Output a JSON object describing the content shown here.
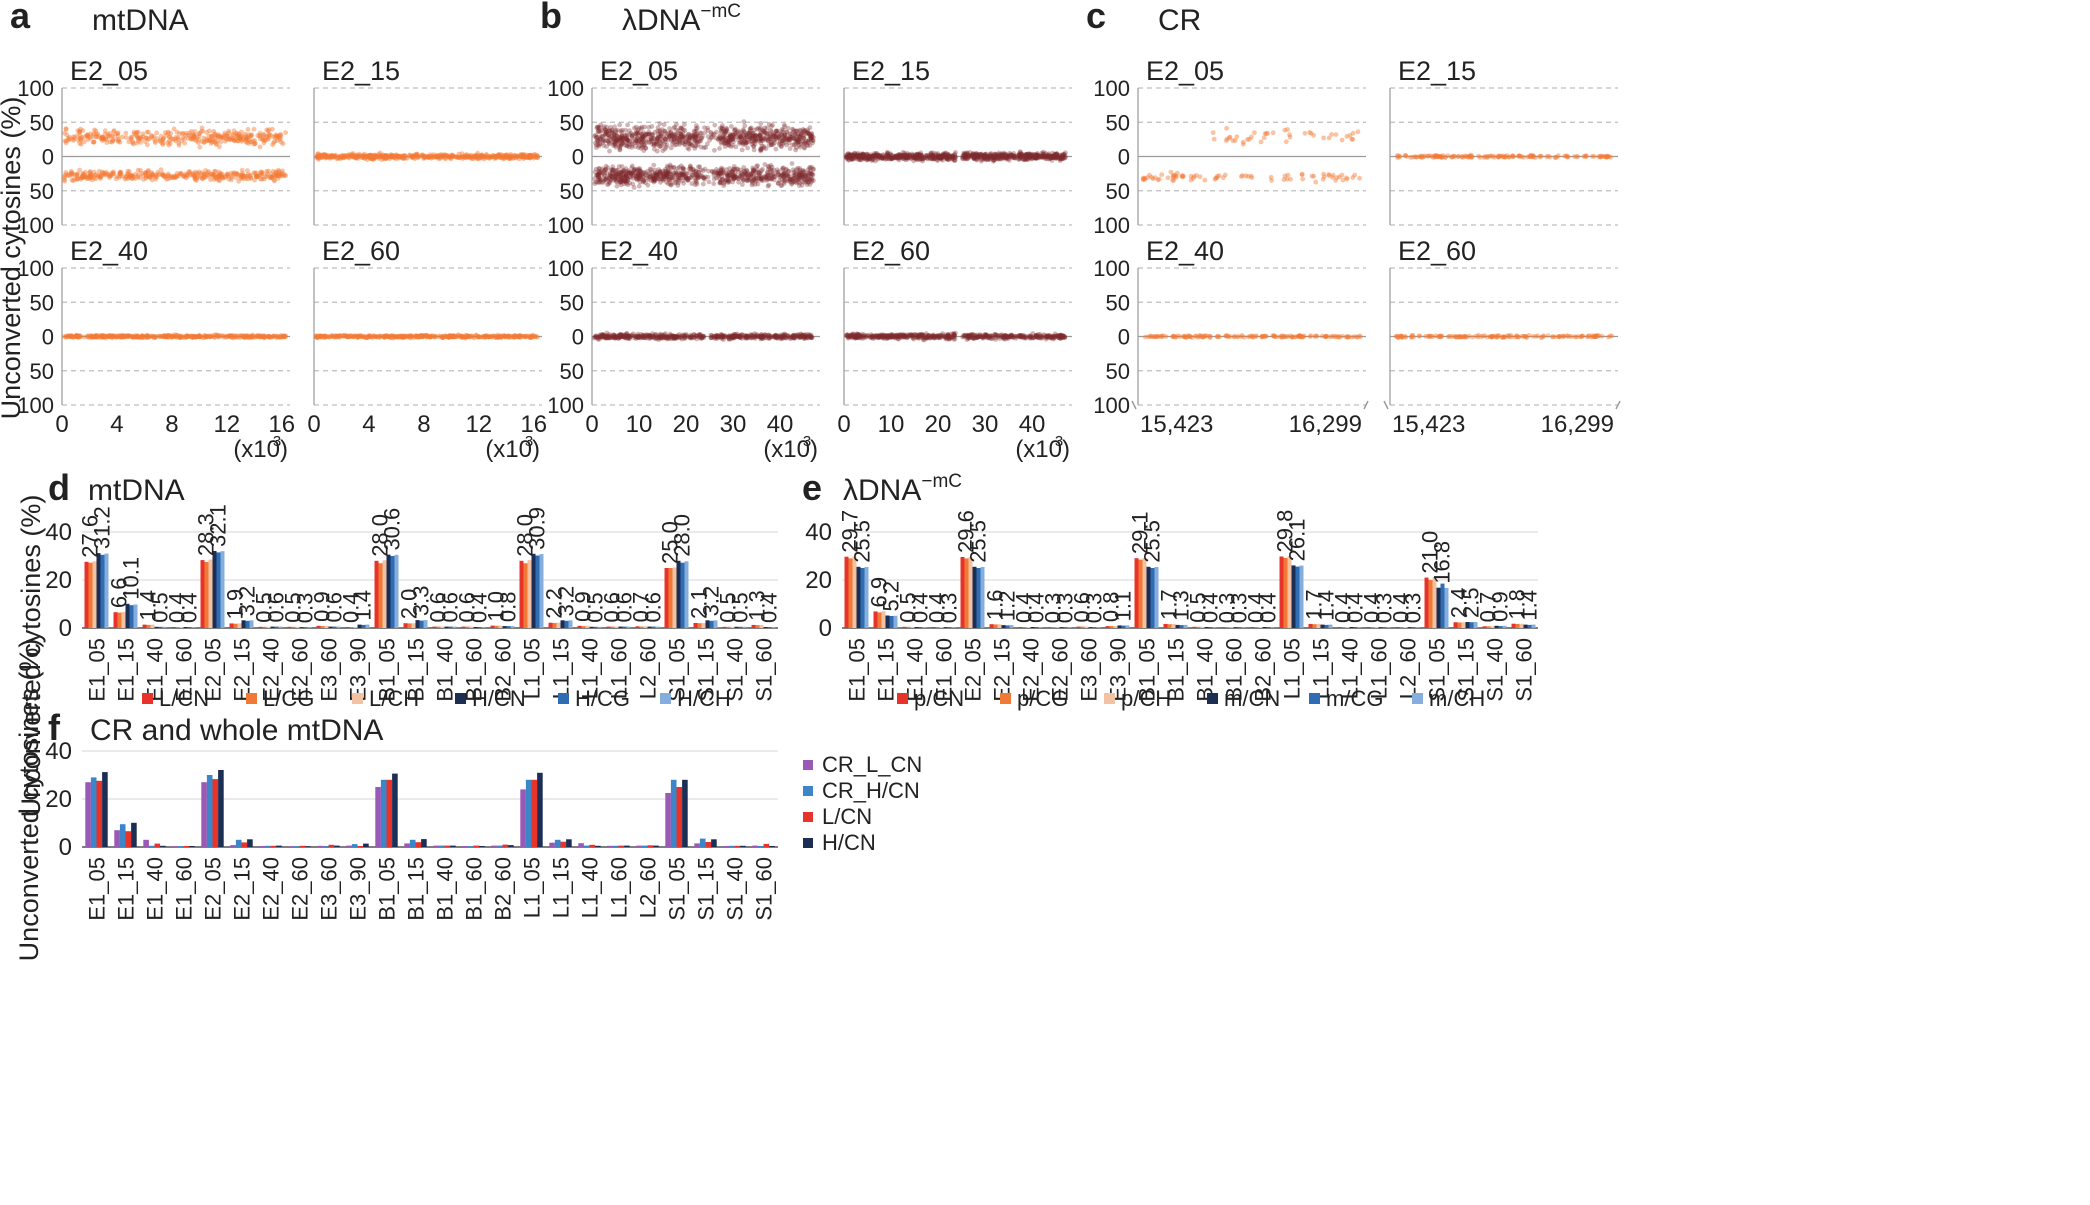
{
  "colors": {
    "mt_dots": "#f47b35",
    "lambda_dots": "#7d2a2e",
    "L_CN": "#e8332a",
    "L_CG": "#f07a35",
    "L_CH": "#f3c2a3",
    "H_CN": "#1d2e54",
    "H_CG": "#2e6db3",
    "H_CH": "#86aedc",
    "CR_L_CN": "#9b59b6",
    "CR_H_CN": "#3a86c8",
    "grid": "#bdbdbd",
    "axis": "#9a9a9a"
  },
  "y_axis_label": "Unconverted cytosines (%)",
  "top": {
    "y_ticks": [
      "100",
      "50",
      "0",
      "50",
      "100"
    ],
    "panels": [
      {
        "letter": "a",
        "title": "mtDNA",
        "kind": "mt",
        "x_ticks": [
          "0",
          "4",
          "8",
          "12",
          "16"
        ],
        "x_unit": "(x10³)",
        "subplots": [
          {
            "label": "E2_05",
            "spread": "wide"
          },
          {
            "label": "E2_15",
            "spread": "low"
          },
          {
            "label": "E2_40",
            "spread": "tiny"
          },
          {
            "label": "E2_60",
            "spread": "tiny"
          }
        ]
      },
      {
        "letter": "b",
        "title": "λDNA",
        "title_sup": "−mC",
        "kind": "lambda",
        "x_ticks": [
          "0",
          "10",
          "20",
          "30",
          "40"
        ],
        "x_unit": "(x10³)",
        "subplots": [
          {
            "label": "E2_05",
            "spread": "wide"
          },
          {
            "label": "E2_15",
            "spread": "low"
          },
          {
            "label": "E2_40",
            "spread": "tiny"
          },
          {
            "label": "E2_60",
            "spread": "tiny"
          }
        ]
      },
      {
        "letter": "c",
        "title": "CR",
        "kind": "cr",
        "x_ticks": [
          "15,423",
          "16,299"
        ],
        "x_unit": "",
        "subplots": [
          {
            "label": "E2_05",
            "spread": "wide"
          },
          {
            "label": "E2_15",
            "spread": "low"
          },
          {
            "label": "E2_40",
            "spread": "tiny"
          },
          {
            "label": "E2_60",
            "spread": "tiny"
          }
        ]
      }
    ]
  },
  "chart_data": [
    {
      "id": "d",
      "type": "bar",
      "letter": "d",
      "title": "mtDNA",
      "ylim": [
        0,
        40
      ],
      "yticks": [
        0,
        20,
        40
      ],
      "ylabel": "Unconverted cytosines (%)",
      "categories": [
        "E1_05",
        "E1_15",
        "E1_40",
        "E1_60",
        "E2_05",
        "E2_15",
        "E2_40",
        "E2_60",
        "E3_60",
        "E3_90",
        "B1_05",
        "B1_15",
        "B1_40",
        "B1_60",
        "B2_60",
        "L1_05",
        "L1_15",
        "L1_40",
        "L1_60",
        "L2_60",
        "S1_05",
        "S1_15",
        "S1_40",
        "S1_60"
      ],
      "labels": [
        "27.6",
        "6.6",
        "1.4",
        "0.4",
        "28.3",
        "1.9",
        "0.5",
        "0.5",
        "0.9",
        "0.4",
        "28.0",
        "2.0",
        "0.6",
        "0.6",
        "1.0",
        "28.0",
        "2.2",
        "0.9",
        "0.6",
        "0.7",
        "25.0",
        "2.1",
        "0.5",
        "1.3"
      ],
      "labels2": [
        "31.2",
        "10.1",
        "0.5",
        "0.4",
        "32.1",
        "3.2",
        "0.6",
        "0.3",
        "0.6",
        "1.4",
        "30.6",
        "3.3",
        "0.6",
        "0.4",
        "0.8",
        "30.9",
        "3.2",
        "0.5",
        "0.6",
        "0.6",
        "28.0",
        "3.2",
        "0.5",
        "0.4"
      ],
      "series": [
        {
          "name": "L/CN",
          "color": "#e8332a",
          "values": [
            27.6,
            6.6,
            1.4,
            0.4,
            28.3,
            1.9,
            0.5,
            0.5,
            0.9,
            0.4,
            28.0,
            2.0,
            0.6,
            0.6,
            1.0,
            28.0,
            2.2,
            0.9,
            0.6,
            0.7,
            25.0,
            2.1,
            0.5,
            1.3
          ]
        },
        {
          "name": "L/CG",
          "color": "#f07a35",
          "values": [
            27.2,
            6.4,
            1.3,
            0.4,
            27.5,
            1.8,
            0.5,
            0.5,
            0.8,
            0.4,
            27.0,
            1.9,
            0.6,
            0.6,
            0.9,
            27.0,
            2.1,
            0.8,
            0.6,
            0.6,
            25.0,
            2.0,
            0.5,
            1.2
          ]
        },
        {
          "name": "L/CH",
          "color": "#f3c2a3",
          "values": [
            27.8,
            6.7,
            1.4,
            0.4,
            28.5,
            1.9,
            0.5,
            0.5,
            0.9,
            0.4,
            28.2,
            2.0,
            0.6,
            0.6,
            1.0,
            28.3,
            2.2,
            0.9,
            0.6,
            0.7,
            25.2,
            2.1,
            0.5,
            1.3
          ]
        },
        {
          "name": "H/CN",
          "color": "#1d2e54",
          "values": [
            31.2,
            10.1,
            0.5,
            0.4,
            32.1,
            3.2,
            0.6,
            0.3,
            0.6,
            1.4,
            30.6,
            3.3,
            0.6,
            0.4,
            0.8,
            30.9,
            3.2,
            0.5,
            0.6,
            0.6,
            28.0,
            3.2,
            0.5,
            0.4
          ]
        },
        {
          "name": "H/CG",
          "color": "#2e6db3",
          "values": [
            30.5,
            9.5,
            0.5,
            0.4,
            31.5,
            3.0,
            0.6,
            0.3,
            0.6,
            1.3,
            30.0,
            3.1,
            0.6,
            0.4,
            0.8,
            30.2,
            3.0,
            0.5,
            0.6,
            0.6,
            27.2,
            3.0,
            0.5,
            0.4
          ]
        },
        {
          "name": "H/CH",
          "color": "#86aedc",
          "values": [
            31.0,
            9.8,
            0.5,
            0.4,
            32.0,
            3.2,
            0.6,
            0.3,
            0.6,
            1.4,
            30.5,
            3.3,
            0.6,
            0.4,
            0.8,
            30.8,
            3.2,
            0.5,
            0.6,
            0.6,
            27.8,
            3.2,
            0.5,
            0.4
          ]
        }
      ]
    },
    {
      "id": "e",
      "type": "bar",
      "letter": "e",
      "title": "λDNA",
      "title_sup": "−mC",
      "ylim": [
        0,
        40
      ],
      "yticks": [
        0,
        20,
        40
      ],
      "categories": [
        "E1_05",
        "E1_15",
        "E1_40",
        "E1_60",
        "E2_05",
        "E2_15",
        "E2_40",
        "E2_60",
        "E3_60",
        "E3_90",
        "B1_05",
        "B1_15",
        "B1_40",
        "B1_60",
        "B2_60",
        "L1_05",
        "L1_15",
        "L1_40",
        "L1_60",
        "L2_60",
        "S1_05",
        "S1_15",
        "S1_40",
        "S1_60"
      ],
      "labels": [
        "29.7",
        "6.9",
        "0.5",
        "0.4",
        "29.6",
        "1.6",
        "0.4",
        "0.3",
        "0.6",
        "0.8",
        "29.1",
        "1.7",
        "0.5",
        "0.3",
        "0.4",
        "29.8",
        "1.7",
        "0.4",
        "0.4",
        "0.4",
        "21.0",
        "2.4",
        "0.7",
        "1.8"
      ],
      "labels2": [
        "25.5",
        "5.2",
        "0.4",
        "0.3",
        "25.5",
        "1.2",
        "0.4",
        "0.3",
        "0.3",
        "1.1",
        "25.5",
        "1.3",
        "0.4",
        "0.3",
        "0.4",
        "26.1",
        "1.4",
        "0.4",
        "0.3",
        "0.3",
        "16.8",
        "2.5",
        "0.9",
        "1.4"
      ],
      "series": [
        {
          "name": "p/CN",
          "color": "#e8332a",
          "values": [
            29.7,
            6.9,
            0.5,
            0.4,
            29.6,
            1.6,
            0.4,
            0.3,
            0.6,
            0.8,
            29.1,
            1.7,
            0.5,
            0.3,
            0.4,
            29.8,
            1.7,
            0.4,
            0.4,
            0.4,
            21.0,
            2.4,
            0.7,
            1.8
          ]
        },
        {
          "name": "p/CG",
          "color": "#f07a35",
          "values": [
            29.0,
            6.5,
            0.5,
            0.4,
            29.0,
            1.5,
            0.4,
            0.3,
            0.6,
            0.8,
            28.5,
            1.6,
            0.5,
            0.3,
            0.4,
            29.2,
            1.6,
            0.4,
            0.4,
            0.4,
            20.0,
            2.3,
            0.7,
            1.7
          ]
        },
        {
          "name": "p/CH",
          "color": "#f3c2a3",
          "values": [
            29.8,
            7.0,
            0.5,
            0.4,
            29.7,
            1.6,
            0.4,
            0.3,
            0.6,
            0.8,
            29.2,
            1.7,
            0.5,
            0.3,
            0.4,
            29.9,
            1.7,
            0.4,
            0.4,
            0.4,
            21.2,
            2.4,
            0.7,
            1.8
          ]
        },
        {
          "name": "m/CN",
          "color": "#1d2e54",
          "values": [
            25.5,
            5.2,
            0.4,
            0.3,
            25.5,
            1.2,
            0.4,
            0.3,
            0.3,
            1.1,
            25.5,
            1.3,
            0.4,
            0.3,
            0.4,
            26.1,
            1.4,
            0.4,
            0.3,
            0.3,
            16.8,
            2.5,
            0.9,
            1.4
          ]
        },
        {
          "name": "m/CG",
          "color": "#2e6db3",
          "values": [
            25.0,
            5.0,
            0.4,
            0.3,
            25.0,
            1.1,
            0.4,
            0.3,
            0.3,
            1.0,
            25.0,
            1.2,
            0.4,
            0.3,
            0.4,
            25.6,
            1.3,
            0.4,
            0.3,
            0.3,
            18.5,
            2.4,
            0.8,
            1.3
          ]
        },
        {
          "name": "m/CH",
          "color": "#86aedc",
          "values": [
            25.4,
            5.1,
            0.4,
            0.3,
            25.4,
            1.2,
            0.4,
            0.3,
            0.3,
            1.1,
            25.4,
            1.3,
            0.4,
            0.3,
            0.4,
            26.0,
            1.4,
            0.4,
            0.3,
            0.3,
            16.7,
            2.5,
            0.9,
            1.4
          ]
        }
      ]
    },
    {
      "id": "f",
      "type": "bar",
      "letter": "f",
      "title": "CR and whole mtDNA",
      "ylim": [
        0,
        40
      ],
      "yticks": [
        0,
        20,
        40
      ],
      "ylabel": "Unconverted cytosines (%)",
      "categories": [
        "E1_05",
        "E1_15",
        "E1_40",
        "E1_60",
        "E2_05",
        "E2_15",
        "E2_40",
        "E2_60",
        "E3_60",
        "E3_90",
        "B1_05",
        "B1_15",
        "B1_40",
        "B1_60",
        "B2_60",
        "L1_05",
        "L1_15",
        "L1_40",
        "L1_60",
        "L2_60",
        "S1_05",
        "S1_15",
        "S1_40",
        "S1_60"
      ],
      "series": [
        {
          "name": "CR_L/CN",
          "color": "#9b59b6",
          "values": [
            27,
            7,
            3,
            0.3,
            27,
            0.8,
            0.4,
            0.3,
            0.5,
            0.6,
            25,
            1.5,
            0.6,
            0.4,
            0.6,
            24,
            1.8,
            1.6,
            0.5,
            0.6,
            22.5,
            1.5,
            0.4,
            0.6
          ]
        },
        {
          "name": "CR_H/CN",
          "color": "#3a86c8",
          "values": [
            29,
            9.5,
            0.5,
            0.3,
            30,
            3,
            0.5,
            0.3,
            0.4,
            1.2,
            28,
            3,
            0.6,
            0.3,
            0.6,
            28,
            3,
            0.6,
            0.5,
            0.6,
            28,
            3.5,
            0.5,
            0.4
          ]
        },
        {
          "name": "L/CN",
          "color": "#e8332a",
          "values": [
            27.6,
            6.6,
            1.4,
            0.4,
            28.3,
            1.9,
            0.5,
            0.5,
            0.9,
            0.4,
            28.0,
            2.0,
            0.6,
            0.6,
            1.0,
            28.0,
            2.2,
            0.9,
            0.6,
            0.7,
            25.0,
            2.1,
            0.5,
            1.3
          ]
        },
        {
          "name": "H/CN",
          "color": "#1d2e54",
          "values": [
            31.2,
            10.1,
            0.5,
            0.4,
            32.1,
            3.2,
            0.6,
            0.3,
            0.6,
            1.4,
            30.6,
            3.3,
            0.6,
            0.4,
            0.8,
            30.9,
            3.2,
            0.5,
            0.6,
            0.6,
            28.0,
            3.2,
            0.5,
            0.4
          ]
        }
      ]
    }
  ]
}
